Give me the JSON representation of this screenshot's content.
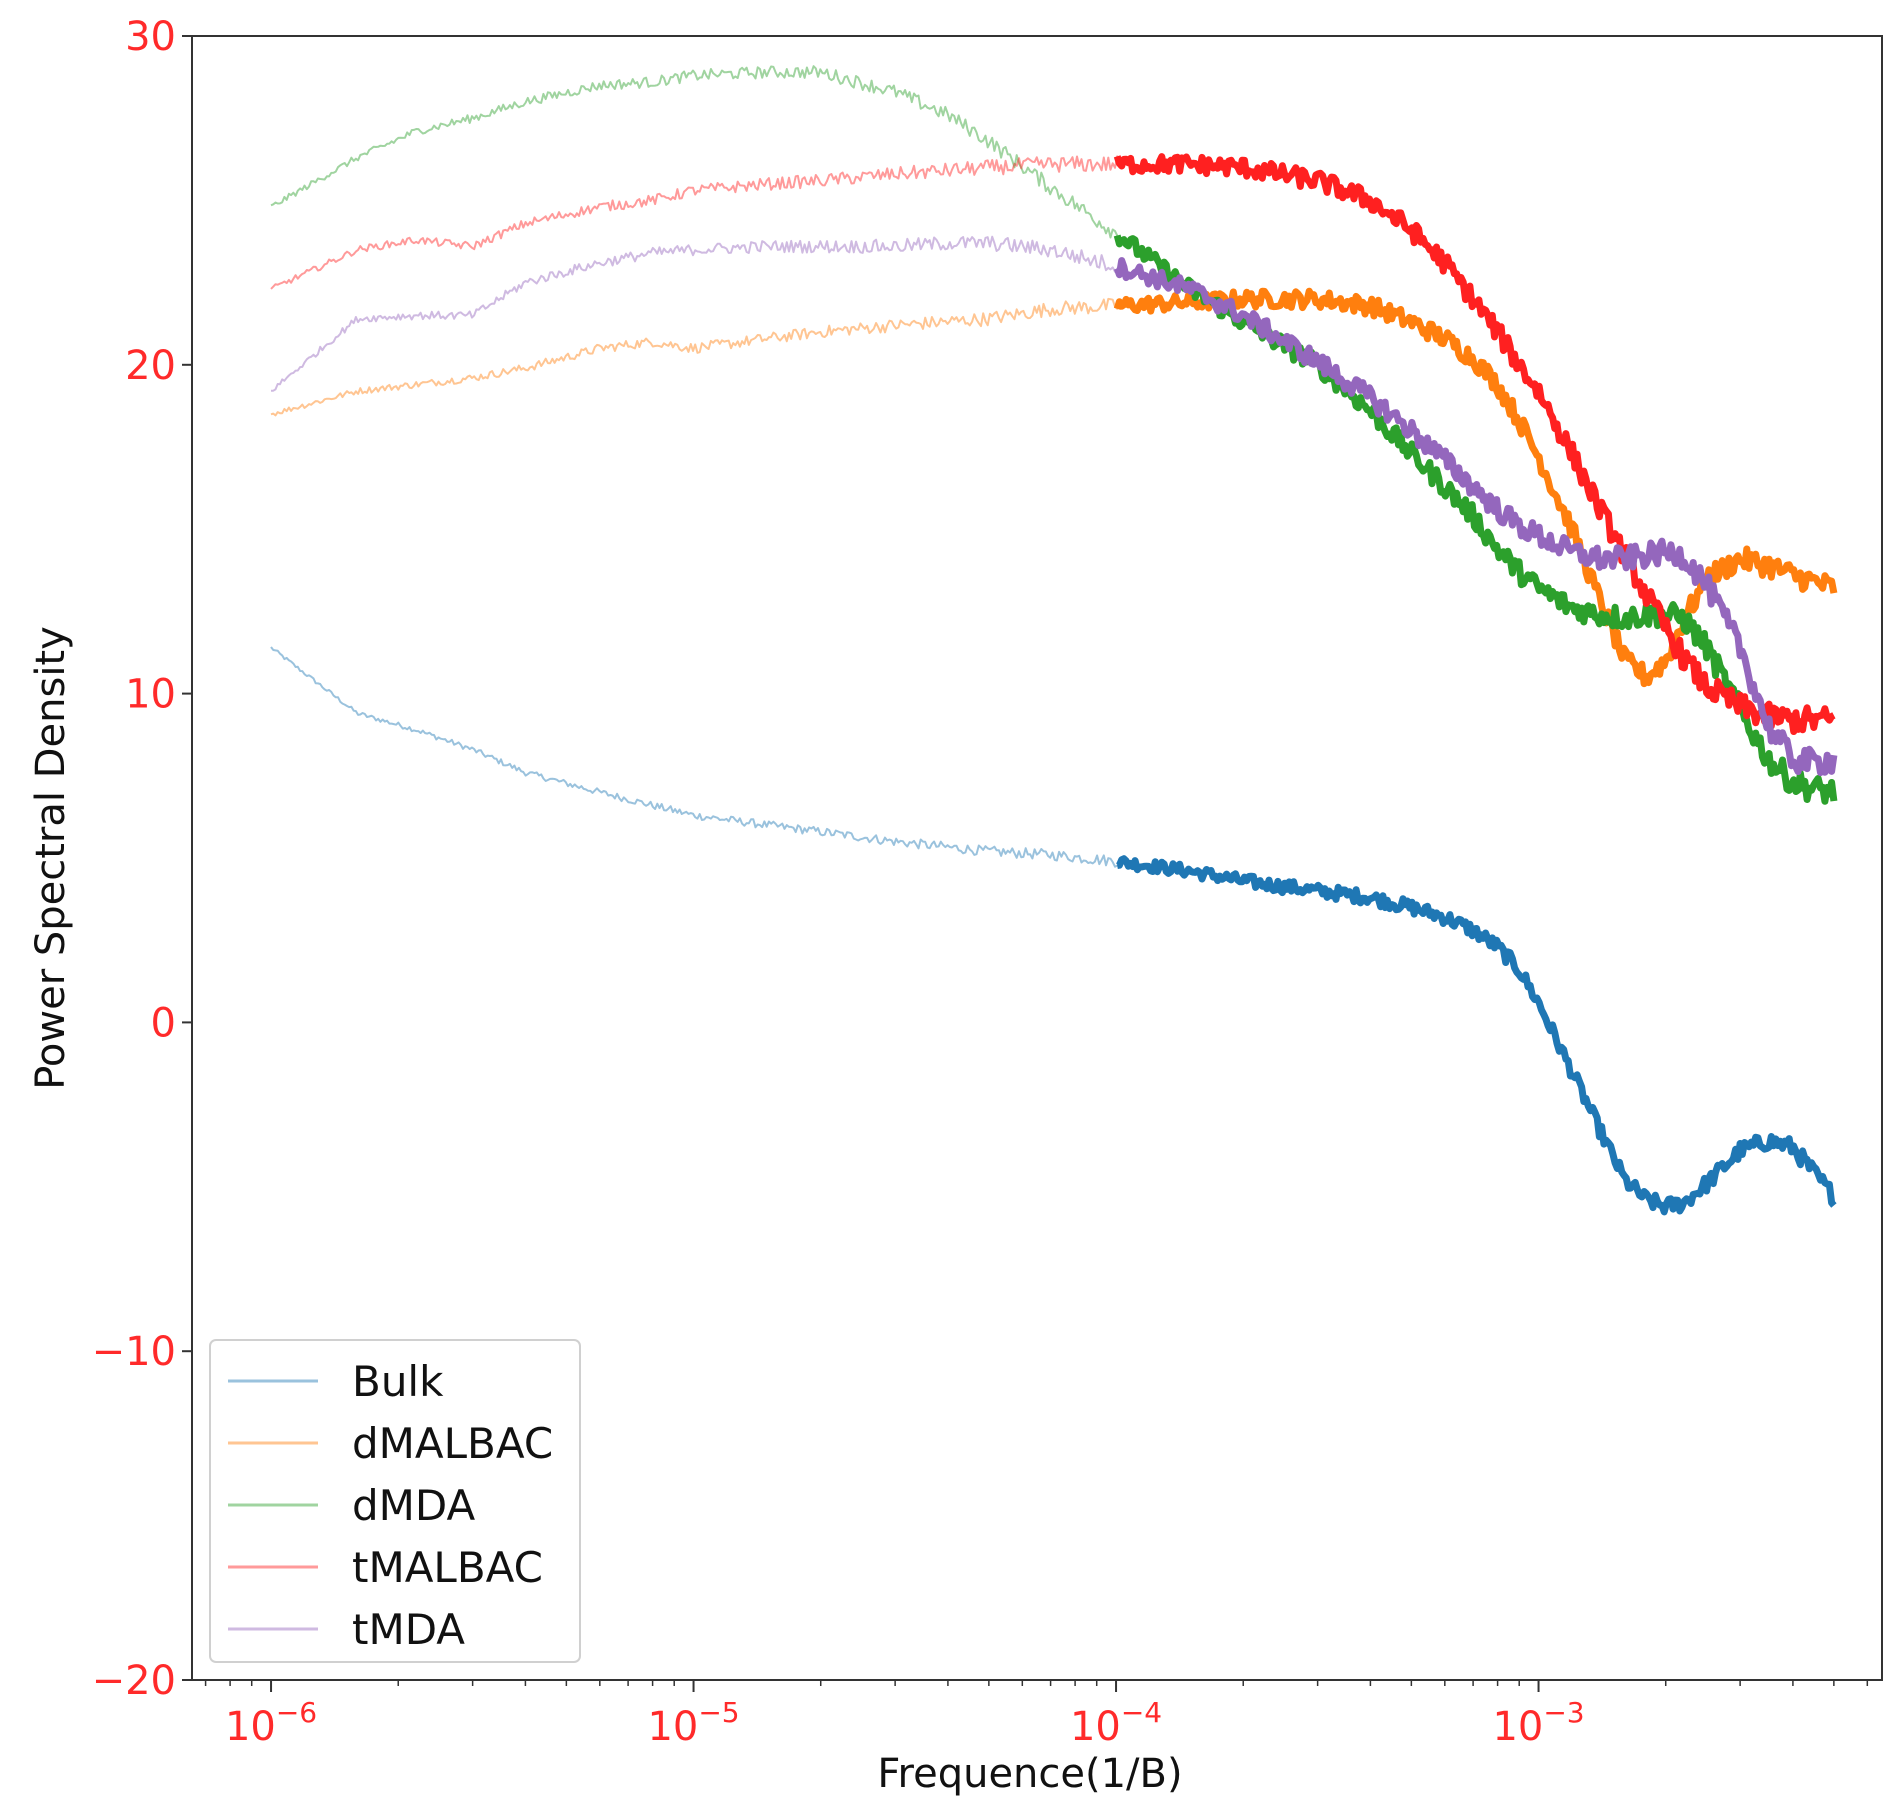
{
  "chart_data": {
    "type": "line",
    "title": "",
    "xlabel": "Frequence(1/B)",
    "ylabel": "Power Spectral Density",
    "xscale": "log",
    "xlim": [
      6.5e-07,
      0.0065
    ],
    "ylim": [
      -20,
      30
    ],
    "yticks": [
      -20,
      -10,
      0,
      10,
      20,
      30
    ],
    "ytick_labels": [
      "−20",
      "−10",
      "0",
      "10",
      "20",
      "30"
    ],
    "xticks": [
      1e-06,
      1e-05,
      0.0001,
      0.001
    ],
    "xtick_labels": [
      {
        "base": "10",
        "exp": "−6"
      },
      {
        "base": "10",
        "exp": "−5"
      },
      {
        "base": "10",
        "exp": "−4"
      },
      {
        "base": "10",
        "exp": "−3"
      }
    ],
    "tick_label_color": "#ff2a2a",
    "legend_position": "lower-left",
    "series": [
      {
        "name": "Bulk",
        "color": "#1f77b4",
        "x": [
          1e-06,
          1.6e-06,
          2.2e-06,
          3e-06,
          4e-06,
          6e-06,
          8e-06,
          1e-05,
          1.5e-05,
          2e-05,
          3e-05,
          5e-05,
          7e-05,
          0.0001,
          0.00015,
          0.0002,
          0.0003,
          0.0004,
          0.0005,
          0.0006,
          0.0007,
          0.0008,
          0.0009,
          0.001,
          0.0012,
          0.0014,
          0.0016,
          0.0018,
          0.002,
          0.0022,
          0.0025,
          0.003,
          0.0035,
          0.004,
          0.0045,
          0.005
        ],
        "values": [
          11.4,
          9.4,
          8.9,
          8.3,
          7.6,
          7.0,
          6.6,
          6.3,
          6.0,
          5.8,
          5.5,
          5.2,
          5.1,
          4.9,
          4.6,
          4.3,
          4.0,
          3.8,
          3.5,
          3.2,
          2.8,
          2.3,
          1.6,
          0.6,
          -1.5,
          -3.3,
          -4.8,
          -5.4,
          -5.6,
          -5.5,
          -4.9,
          -3.9,
          -3.6,
          -3.8,
          -4.6,
          -5.3
        ],
        "line_width_low": 2,
        "line_width_high": 7,
        "noise": 0.15
      },
      {
        "name": "dMALBAC",
        "color": "#ff7f0e",
        "x": [
          1e-06,
          1.6e-06,
          2.2e-06,
          3e-06,
          4e-06,
          6e-06,
          8e-06,
          1e-05,
          1.5e-05,
          2e-05,
          3e-05,
          5e-05,
          7e-05,
          0.0001,
          0.00015,
          0.0002,
          0.0003,
          0.0004,
          0.0005,
          0.0006,
          0.0007,
          0.0008,
          0.0009,
          0.001,
          0.0012,
          0.0014,
          0.0016,
          0.0018,
          0.002,
          0.0022,
          0.0025,
          0.003,
          0.0035,
          0.004,
          0.0045,
          0.005
        ],
        "values": [
          18.5,
          19.2,
          19.4,
          19.6,
          19.9,
          20.5,
          20.7,
          20.5,
          20.8,
          21.0,
          21.2,
          21.4,
          21.7,
          21.8,
          21.9,
          22.0,
          22.0,
          21.8,
          21.3,
          20.8,
          20.2,
          19.4,
          18.3,
          17.2,
          15.0,
          12.8,
          11.0,
          10.5,
          11.0,
          12.2,
          13.5,
          14.1,
          13.9,
          13.6,
          13.4,
          13.2
        ],
        "line_width_low": 2,
        "line_width_high": 7,
        "noise": 0.2
      },
      {
        "name": "dMDA",
        "color": "#2ca02c",
        "x": [
          1e-06,
          1.6e-06,
          2.2e-06,
          3e-06,
          4e-06,
          6e-06,
          8e-06,
          1e-05,
          1.5e-05,
          2e-05,
          3e-05,
          4e-05,
          5e-05,
          7e-05,
          0.0001,
          0.00015,
          0.0002,
          0.0003,
          0.0004,
          0.0005,
          0.0006,
          0.0007,
          0.0008,
          0.0009,
          0.001,
          0.0012,
          0.0014,
          0.0016,
          0.0018,
          0.002,
          0.0022,
          0.0025,
          0.003,
          0.0035,
          0.004,
          0.0045,
          0.005
        ],
        "values": [
          24.8,
          26.3,
          27.1,
          27.5,
          28.0,
          28.5,
          28.6,
          28.8,
          28.9,
          28.9,
          28.3,
          27.6,
          26.8,
          25.4,
          24.0,
          22.3,
          21.3,
          20.0,
          18.6,
          17.3,
          16.3,
          15.4,
          14.4,
          13.7,
          13.2,
          12.6,
          12.4,
          12.3,
          12.4,
          12.4,
          12.3,
          11.4,
          9.5,
          8.0,
          7.3,
          7.1,
          7.0
        ],
        "line_width_low": 2,
        "line_width_high": 7,
        "noise": 0.22
      },
      {
        "name": "tMALBAC",
        "color": "#ff2020",
        "x": [
          1e-06,
          1.6e-06,
          2.2e-06,
          3e-06,
          4e-06,
          6e-06,
          8e-06,
          1e-05,
          1.5e-05,
          2e-05,
          3e-05,
          5e-05,
          7e-05,
          0.0001,
          0.00015,
          0.0002,
          0.0003,
          0.0004,
          0.0005,
          0.0006,
          0.0007,
          0.0008,
          0.0009,
          0.001,
          0.0012,
          0.0014,
          0.0016,
          0.0018,
          0.002,
          0.0022,
          0.0025,
          0.003,
          0.0035,
          0.004,
          0.0045,
          0.005
        ],
        "values": [
          22.3,
          23.5,
          23.8,
          23.6,
          24.3,
          24.8,
          25.0,
          25.3,
          25.5,
          25.6,
          25.8,
          26.0,
          26.1,
          26.1,
          26.1,
          26.0,
          25.6,
          25.0,
          24.1,
          23.1,
          22.0,
          21.0,
          20.0,
          19.2,
          17.3,
          15.6,
          14.2,
          13.0,
          12.0,
          11.1,
          10.2,
          9.6,
          9.3,
          9.2,
          9.2,
          9.2
        ],
        "line_width_low": 2,
        "line_width_high": 7,
        "noise": 0.22
      },
      {
        "name": "tMDA",
        "color": "#9467bd",
        "x": [
          1e-06,
          1.6e-06,
          2.2e-06,
          3e-06,
          4e-06,
          6e-06,
          8e-06,
          1e-05,
          1.5e-05,
          2e-05,
          3e-05,
          4e-05,
          5e-05,
          7e-05,
          0.0001,
          0.00015,
          0.0002,
          0.0003,
          0.0004,
          0.0005,
          0.0006,
          0.0007,
          0.0008,
          0.0009,
          0.001,
          0.0012,
          0.0014,
          0.0016,
          0.0018,
          0.002,
          0.0022,
          0.0025,
          0.003,
          0.0035,
          0.004,
          0.0045,
          0.005
        ],
        "values": [
          19.2,
          21.4,
          21.5,
          21.5,
          22.5,
          23.1,
          23.4,
          23.5,
          23.6,
          23.6,
          23.6,
          23.7,
          23.7,
          23.5,
          23.0,
          22.3,
          21.5,
          20.1,
          19.0,
          18.0,
          17.1,
          16.3,
          15.6,
          15.1,
          14.8,
          14.3,
          14.1,
          14.1,
          14.2,
          14.3,
          14.2,
          13.3,
          11.4,
          9.0,
          8.0,
          7.9,
          8.0
        ],
        "line_width_low": 2,
        "line_width_high": 7,
        "noise": 0.22
      }
    ]
  }
}
